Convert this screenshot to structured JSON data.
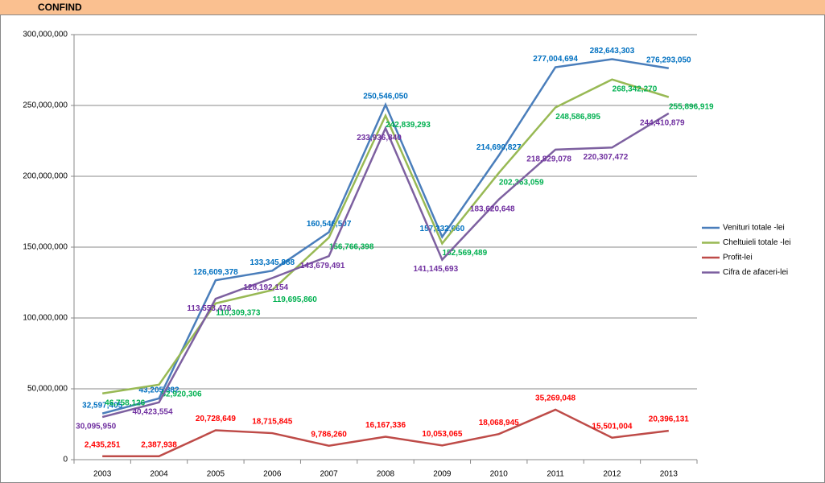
{
  "header": {
    "title": "CONFIND"
  },
  "chart_data": {
    "type": "line",
    "categories": [
      "2003",
      "2004",
      "2005",
      "2006",
      "2007",
      "2008",
      "2009",
      "2010",
      "2011",
      "2012",
      "2013"
    ],
    "ylim": [
      0,
      300000000
    ],
    "yticks": [
      {
        "value": 0,
        "label": "0"
      },
      {
        "value": 50000000,
        "label": "50,000,000"
      },
      {
        "value": 100000000,
        "label": "100,000,000"
      },
      {
        "value": 150000000,
        "label": "150,000,000"
      },
      {
        "value": 200000000,
        "label": "200,000,000"
      },
      {
        "value": 250000000,
        "label": "250,000,000"
      },
      {
        "value": 300000000,
        "label": "300,000,000"
      }
    ],
    "grid": true,
    "legend": "right",
    "series": [
      {
        "name": "Venituri totale -lei",
        "color": "#4a7ebb",
        "label_color": "#0070c0",
        "values": [
          32597405,
          43205882,
          126609378,
          133345888,
          160546507,
          250546050,
          157232660,
          214690827,
          277004694,
          282643303,
          276293050
        ],
        "value_labels": [
          "32,597,405",
          "43,205,882",
          "126,609,378",
          "133,345,888",
          "160,546,507",
          "250,546,050",
          "157,232,660",
          "214,690,827",
          "277,004,694",
          "282,643,303",
          "276,293,050"
        ]
      },
      {
        "name": "Cheltuieli totale -lei",
        "color": "#98b954",
        "label_color": "#00b050",
        "values": [
          46758126,
          52920306,
          110309373,
          119695860,
          156766398,
          242839293,
          152569489,
          202363059,
          248586895,
          268342270,
          255896919
        ],
        "value_labels": [
          "46,758,126",
          "52,920,306",
          "110,309,373",
          "119,695,860",
          "156,766,398",
          "242,839,293",
          "152,569,489",
          "202,363,059",
          "248,586,895",
          "268,342,270",
          "255,896,919"
        ]
      },
      {
        "name": "Profit-lei",
        "color": "#be4b48",
        "label_color": "#ff0000",
        "values": [
          2435251,
          2387938,
          20728649,
          18715845,
          9786260,
          16167336,
          10053065,
          18068945,
          35269048,
          15501004,
          20396131
        ],
        "value_labels": [
          "2,435,251",
          "2,387,938",
          "20,728,649",
          "18,715,845",
          "9,786,260",
          "16,167,336",
          "10,053,065",
          "18,068,945",
          "35,269,048",
          "15,501,004",
          "20,396,131"
        ]
      },
      {
        "name": "Cifra de afaceri-lei",
        "color": "#7d60a0",
        "label_color": "#7030a0",
        "values": [
          30095950,
          40423554,
          113553476,
          128192154,
          143679491,
          233936840,
          141145693,
          183620648,
          218829078,
          220307472,
          244410879
        ],
        "value_labels": [
          "30,095,950",
          "40,423,554",
          "113,553,476",
          "128,192,154",
          "143,679,491",
          "233,936,840",
          "141,145,693",
          "183,620,648",
          "218,829,078",
          "220,307,472",
          "244,410,879"
        ]
      }
    ]
  }
}
